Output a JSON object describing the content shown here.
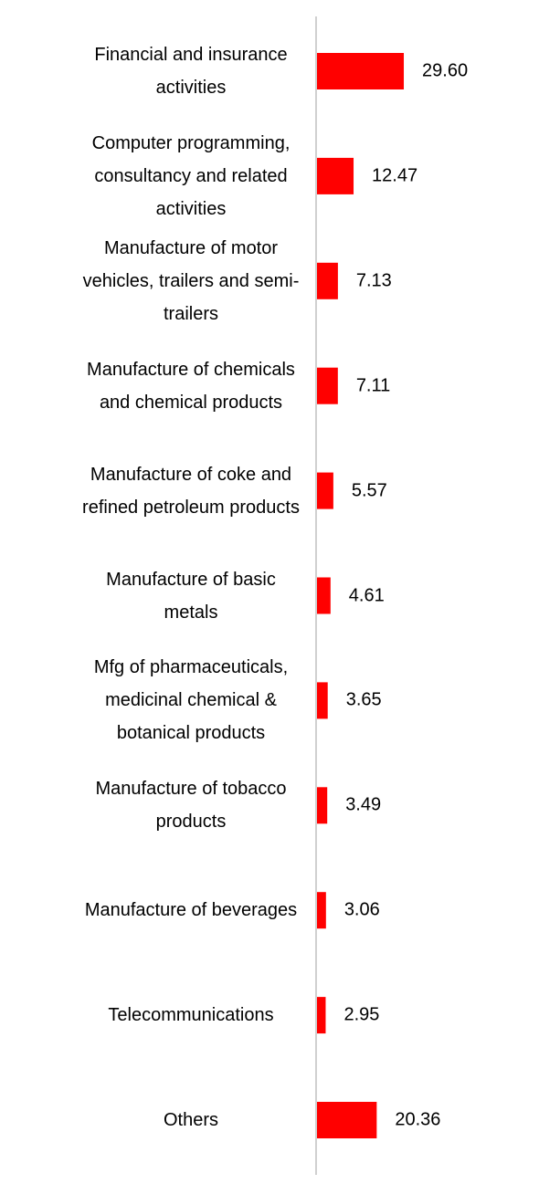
{
  "chart_data": {
    "type": "bar",
    "orientation": "horizontal",
    "color": "#ff0000",
    "categories": [
      "Financial and insurance activities",
      "Computer programming, consultancy and related activities",
      "Manufacture of motor vehicles, trailers and semi-trailers",
      "Manufacture of chemicals and chemical products",
      "Manufacture of coke and refined petroleum products",
      "Manufacture of basic metals",
      "Mfg of pharmaceuticals, medicinal chemical & botanical products",
      "Manufacture of tobacco products",
      "Manufacture of beverages",
      "Telecommunications",
      "Others"
    ],
    "values": [
      29.6,
      12.47,
      7.13,
      7.11,
      5.57,
      4.61,
      3.65,
      3.49,
      3.06,
      2.95,
      20.36
    ],
    "value_labels": [
      "29.60",
      "12.47",
      "7.13",
      "7.11",
      "5.57",
      "4.61",
      "3.65",
      "3.49",
      "3.06",
      "2.95",
      "20.36"
    ]
  }
}
